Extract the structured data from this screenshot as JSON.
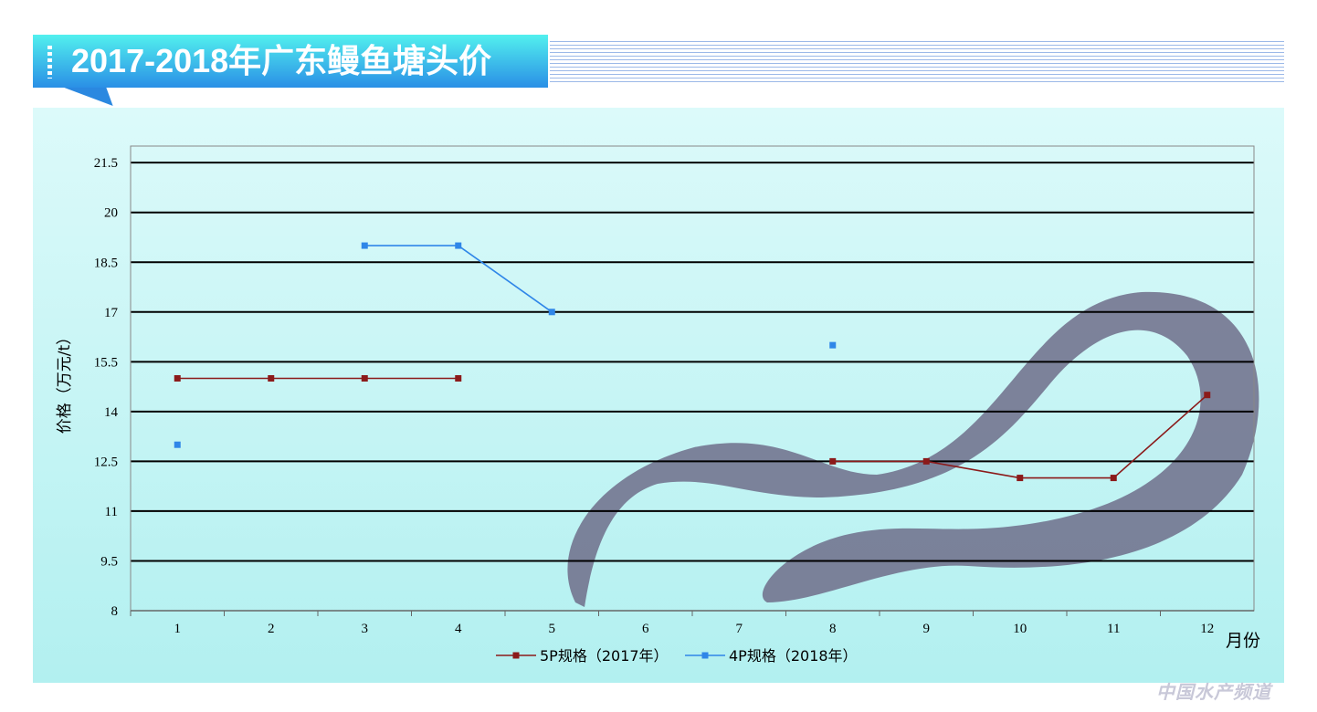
{
  "header": {
    "title": "2017-2018年广东鳗鱼塘头价"
  },
  "watermark": "中国水产频道",
  "chart_data": {
    "type": "line",
    "title": "",
    "xlabel": "月份",
    "ylabel": "价格（万元/t）",
    "categories": [
      "1",
      "2",
      "3",
      "4",
      "5",
      "6",
      "7",
      "8",
      "9",
      "10",
      "11",
      "12"
    ],
    "ylim": [
      8,
      22
    ],
    "yticks": [
      "8",
      "9.5",
      "11",
      "12.5",
      "14",
      "15.5",
      "17",
      "18.5",
      "20",
      "21.5"
    ],
    "grid": true,
    "legend_position": "bottom",
    "series": [
      {
        "name": "5P规格（2017年）",
        "color": "#8b1a1a",
        "values": [
          15,
          15,
          15,
          15,
          null,
          null,
          null,
          12.5,
          12.5,
          12,
          12,
          14.5
        ]
      },
      {
        "name": "4P规格（2018年）",
        "color": "#2f86e8",
        "values": [
          13,
          null,
          19,
          19,
          17,
          null,
          null,
          16,
          null,
          null,
          null,
          null
        ]
      }
    ]
  }
}
